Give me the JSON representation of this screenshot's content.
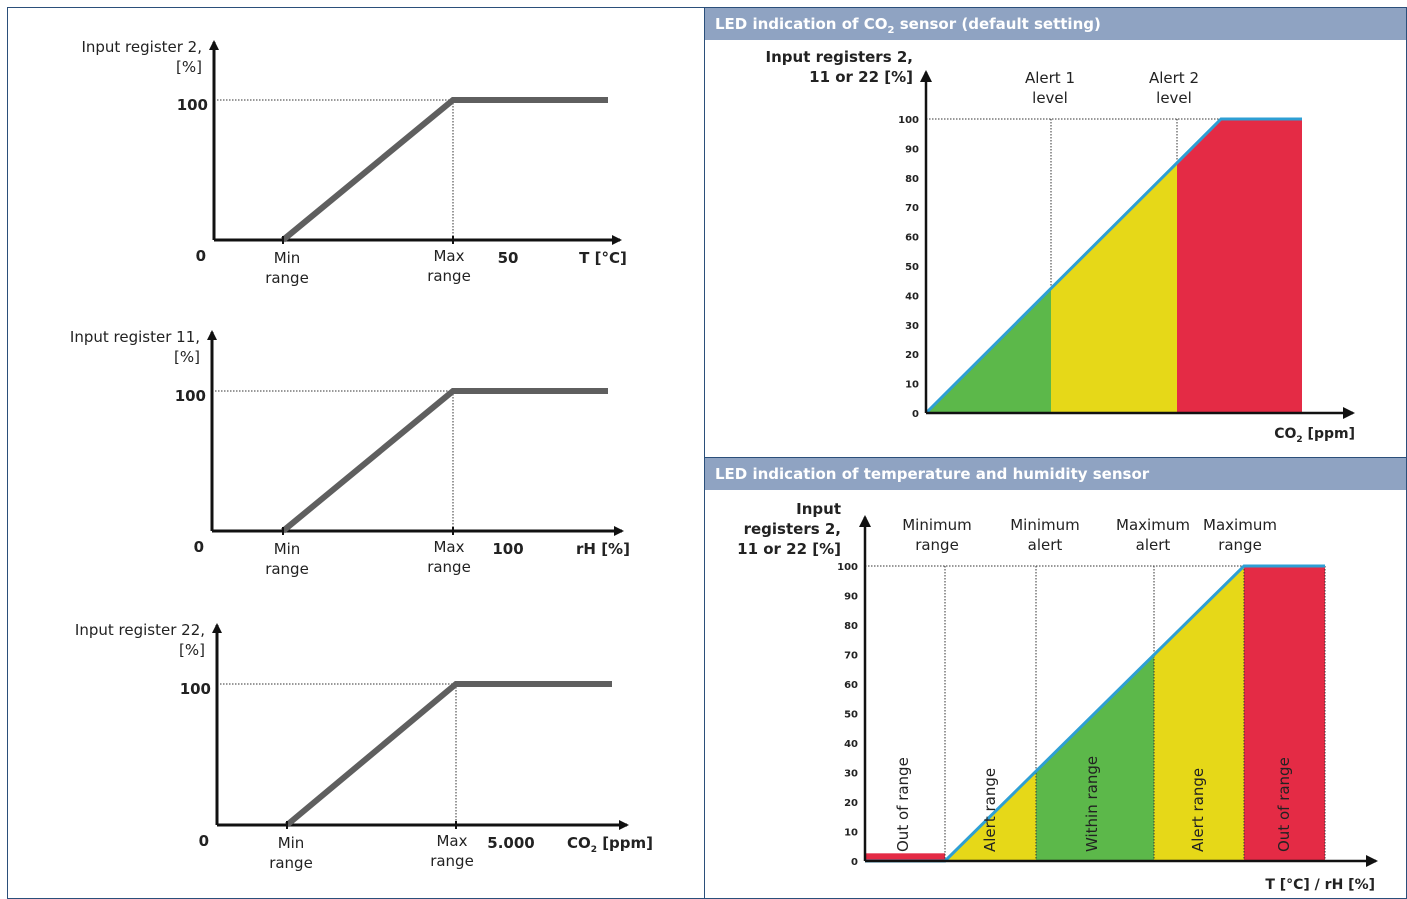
{
  "left_charts": [
    {
      "ylabel_line1": "Input register 2,",
      "ylabel_line2": "[%]",
      "y100": "100",
      "origin": "0",
      "min_line1": "Min",
      "min_line2": "range",
      "max_line1": "Max",
      "max_line2": "range",
      "tick": "50",
      "xlabel": "T [°C]",
      "xlabel_sub": ""
    },
    {
      "ylabel_line1": "Input register 11,",
      "ylabel_line2": "[%]",
      "y100": "100",
      "origin": "0",
      "min_line1": "Min",
      "min_line2": "range",
      "max_line1": "Max",
      "max_line2": "range",
      "tick": "100",
      "xlabel": "rH [%]",
      "xlabel_sub": ""
    },
    {
      "ylabel_line1": "Input register 22,",
      "ylabel_line2": "[%]",
      "y100": "100",
      "origin": "0",
      "min_line1": "Min",
      "min_line2": "range",
      "max_line1": "Max",
      "max_line2": "range",
      "tick": "5.000",
      "xlabel": "CO",
      "xlabel_sub": "2",
      "xlabel_unit": " [ppm]"
    }
  ],
  "co2_panel": {
    "header": "LED indication of CO",
    "header_sub": "2",
    "header_rest": " sensor (default setting)",
    "ylabel_line1": "Input registers 2,",
    "ylabel_line2": "11 or 22 [%]",
    "alert1_line1": "Alert 1",
    "alert1_line2": "level",
    "alert2_line1": "Alert 2",
    "alert2_line2": "level",
    "yticks": [
      "0",
      "10",
      "20",
      "30",
      "40",
      "50",
      "60",
      "70",
      "80",
      "90",
      "100"
    ],
    "xlabel": "CO",
    "xlabel_sub": "2",
    "xlabel_unit": " [ppm]"
  },
  "temp_panel": {
    "header": "LED indication of temperature and humidity sensor",
    "ylabel_line1": "Input",
    "ylabel_line2": "registers 2,",
    "ylabel_line3": "11 or 22 [%]",
    "col_labels": [
      {
        "l1": "Minimum",
        "l2": "range"
      },
      {
        "l1": "Minimum",
        "l2": "alert"
      },
      {
        "l1": "Maximum",
        "l2": "alert"
      },
      {
        "l1": "Maximum",
        "l2": "range"
      }
    ],
    "yticks": [
      "0",
      "10",
      "20",
      "30",
      "40",
      "50",
      "60",
      "70",
      "80",
      "90",
      "100"
    ],
    "zones": [
      "Out of range",
      "Alert range",
      "Within range",
      "Alert range",
      "Out of range"
    ],
    "xlabel": "T [°C] / rH [%]"
  },
  "colors": {
    "line": "#5f5f5f",
    "axis": "#111111",
    "green": "#5cb84a",
    "yellow": "#e6d818",
    "red": "#e42b45",
    "blue": "#2e9fd4",
    "header_bg": "#8fa3c2",
    "border": "#2b4f7a"
  }
}
